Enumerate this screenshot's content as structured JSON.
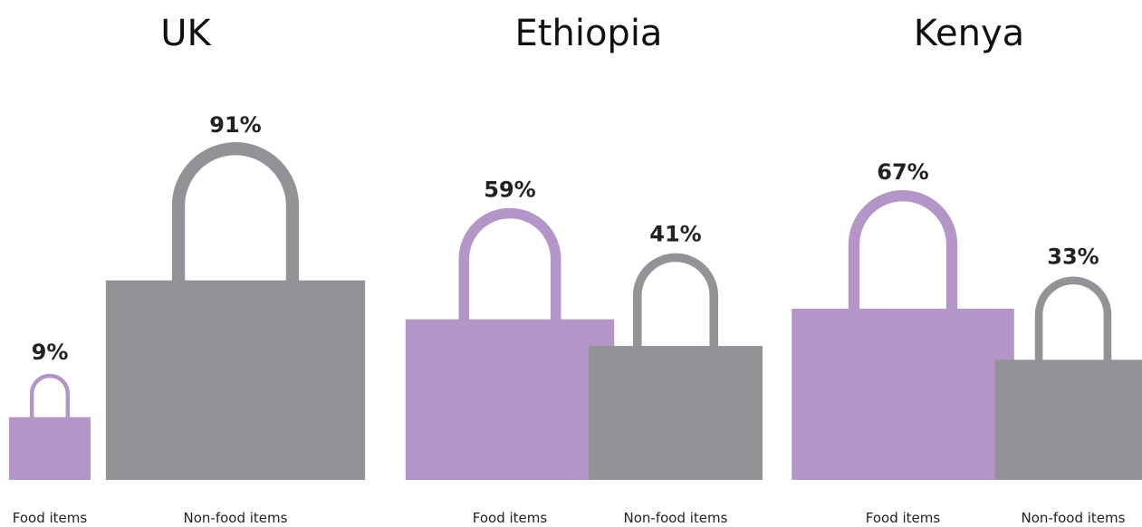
{
  "chart_data": [
    {
      "type": "bar",
      "title": "UK",
      "categories": [
        "Food items",
        "Non-food items"
      ],
      "values": [
        9,
        91
      ],
      "value_labels": [
        "9%",
        "91%"
      ],
      "colors": [
        "#b395c8",
        "#929396"
      ]
    },
    {
      "type": "bar",
      "title": "Ethiopia",
      "categories": [
        "Food items",
        "Non-food items"
      ],
      "values": [
        59,
        41
      ],
      "value_labels": [
        "59%",
        "41%"
      ],
      "colors": [
        "#b395c8",
        "#929396"
      ]
    },
    {
      "type": "bar",
      "title": "Kenya",
      "categories": [
        "Food items",
        "Non-food items"
      ],
      "values": [
        67,
        33
      ],
      "value_labels": [
        "67%",
        "33%"
      ],
      "colors": [
        "#b395c8",
        "#929396"
      ]
    }
  ]
}
